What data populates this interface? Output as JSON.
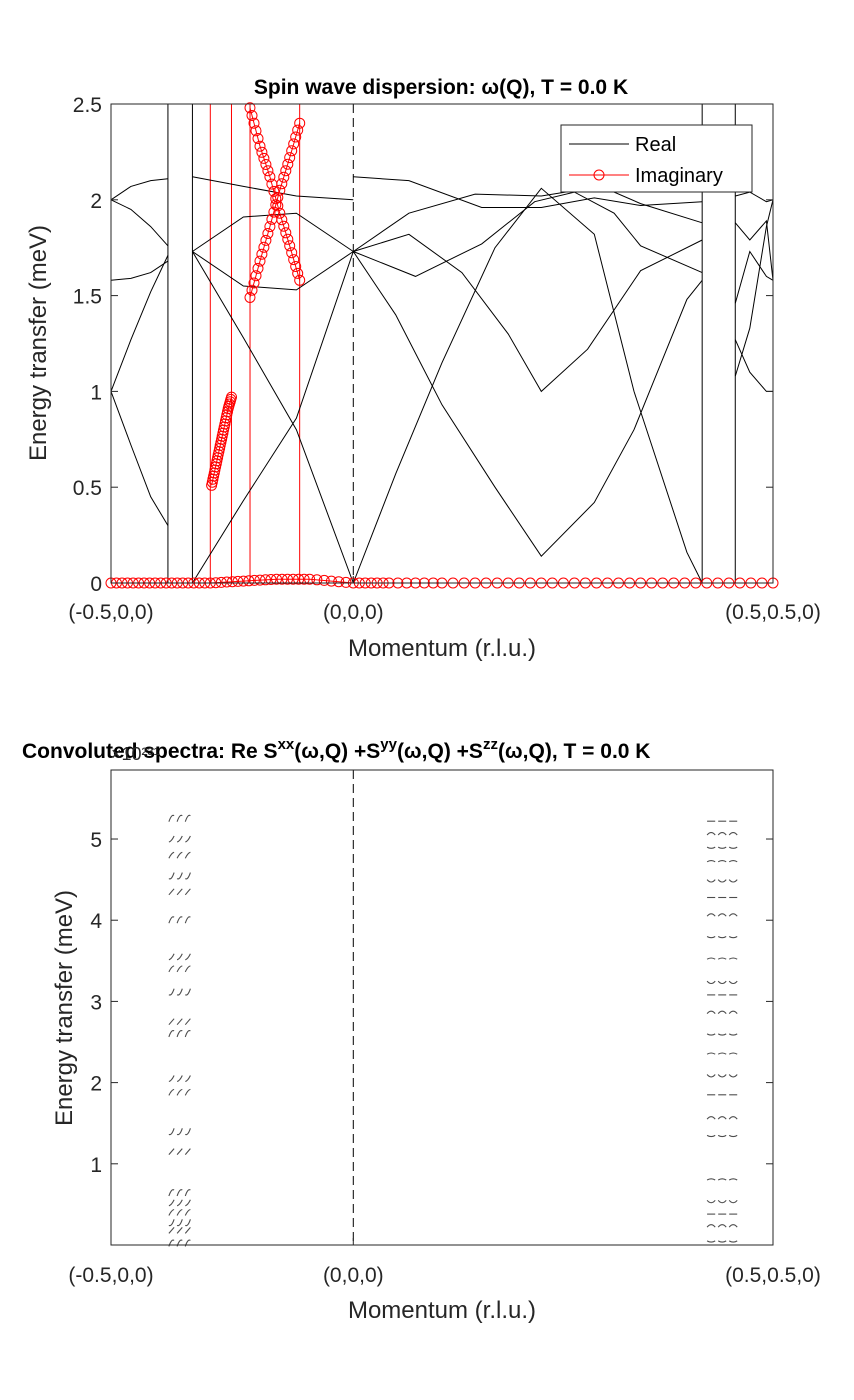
{
  "chart_data": [
    {
      "type": "line",
      "title": "Spin wave dispersion: ω(Q), T =   0.0 K",
      "xlabel": "Momentum (r.l.u.)",
      "ylabel": "Energy transfer (meV)",
      "xlim": [
        0,
        1
      ],
      "ylim": [
        0,
        2.5
      ],
      "x_tick_labels": [
        "(-0.5,0,0)",
        "(0,0,0)",
        "(0.5,0.5,0)"
      ],
      "x_tick_positions": [
        0,
        0.366,
        1
      ],
      "y_ticks": [
        0,
        0.5,
        1,
        1.5,
        2,
        2.5
      ],
      "y_tick_labels": [
        "0",
        "0.5",
        "1",
        "1.5",
        "2",
        "2.5"
      ],
      "legend": {
        "position": "top-right",
        "entries": [
          {
            "label": "Real",
            "color": "#000000",
            "marker": "none"
          },
          {
            "label": "Imaginary",
            "color": "#ff0000",
            "marker": "circle"
          }
        ]
      },
      "series": [
        {
          "name": "Real",
          "color": "#000000",
          "branches": [
            {
              "x": [
                0.0,
                0.03,
                0.06,
                0.086
              ],
              "y": [
                1.0,
                0.72,
                0.45,
                0.3
              ]
            },
            {
              "x": [
                0.0,
                0.03,
                0.06,
                0.086
              ],
              "y": [
                2.0,
                1.95,
                1.86,
                1.76
              ]
            },
            {
              "x": [
                0.0,
                0.03,
                0.06,
                0.086
              ],
              "y": [
                2.0,
                2.07,
                2.1,
                2.11
              ]
            },
            {
              "x": [
                0.0,
                0.03,
                0.06,
                0.086
              ],
              "y": [
                1.58,
                1.59,
                1.62,
                1.68
              ]
            },
            {
              "x": [
                0.0,
                0.03,
                0.06,
                0.086
              ],
              "y": [
                1.0,
                1.27,
                1.52,
                1.71
              ]
            },
            {
              "x": [
                0.123,
                0.2,
                0.28,
                0.366
              ],
              "y": [
                0.0,
                0.43,
                0.86,
                1.73
              ]
            },
            {
              "x": [
                0.123,
                0.2,
                0.28,
                0.366
              ],
              "y": [
                1.73,
                1.28,
                0.8,
                0.0
              ]
            },
            {
              "x": [
                0.123,
                0.2,
                0.28,
                0.366
              ],
              "y": [
                1.73,
                1.91,
                1.93,
                1.73
              ]
            },
            {
              "x": [
                0.123,
                0.2,
                0.28,
                0.366
              ],
              "y": [
                1.73,
                1.55,
                1.53,
                1.73
              ]
            },
            {
              "x": [
                0.123,
                0.2,
                0.28,
                0.366
              ],
              "y": [
                2.12,
                2.07,
                2.02,
                2.0
              ]
            },
            {
              "x": [
                0.366,
                0.43,
                0.5,
                0.58,
                0.65,
                0.73,
                0.79,
                0.87,
                0.893
              ],
              "y": [
                0.0,
                0.57,
                1.15,
                1.75,
                2.06,
                1.82,
                1.0,
                0.16,
                0.0
              ]
            },
            {
              "x": [
                0.366,
                0.43,
                0.5,
                0.58,
                0.65,
                0.73,
                0.79,
                0.87,
                0.893
              ],
              "y": [
                1.73,
                1.4,
                0.93,
                0.5,
                0.14,
                0.42,
                0.8,
                1.48,
                1.58
              ]
            },
            {
              "x": [
                0.366,
                0.45,
                0.56,
                0.65,
                0.73,
                0.8,
                0.893
              ],
              "y": [
                2.12,
                2.1,
                1.96,
                1.96,
                2.01,
                1.97,
                1.99
              ]
            },
            {
              "x": [
                0.366,
                0.45,
                0.53,
                0.6,
                0.65,
                0.72,
                0.8,
                0.893
              ],
              "y": [
                1.73,
                1.82,
                1.62,
                1.3,
                1.0,
                1.22,
                1.63,
                1.79
              ]
            },
            {
              "x": [
                0.366,
                0.45,
                0.55,
                0.65,
                0.74,
                0.8,
                0.893
              ],
              "y": [
                1.73,
                1.93,
                2.03,
                2.02,
                2.07,
                1.98,
                1.88
              ]
            },
            {
              "x": [
                0.366,
                0.46,
                0.56,
                0.64,
                0.7,
                0.76,
                0.8,
                0.893
              ],
              "y": [
                1.73,
                1.6,
                1.77,
                1.99,
                2.04,
                1.93,
                1.76,
                1.62
              ]
            },
            {
              "x": [
                0.943,
                0.965,
                0.99,
                1.0
              ],
              "y": [
                1.27,
                1.1,
                1.0,
                1.0
              ]
            },
            {
              "x": [
                0.943,
                0.965,
                0.99,
                1.0
              ],
              "y": [
                2.02,
                2.04,
                1.99,
                2.0
              ]
            },
            {
              "x": [
                0.943,
                0.965,
                0.99,
                1.0
              ],
              "y": [
                1.88,
                1.79,
                1.89,
                1.58
              ]
            },
            {
              "x": [
                0.943,
                0.965,
                0.99,
                1.0
              ],
              "y": [
                1.46,
                1.73,
                1.6,
                1.58
              ]
            },
            {
              "x": [
                0.943,
                0.965,
                0.99,
                1.0
              ],
              "y": [
                1.08,
                1.33,
                1.86,
                2.0
              ]
            }
          ]
        },
        {
          "name": "Imaginary",
          "color": "#ff0000",
          "branches": [
            {
              "x": [
                0.0,
                0.05,
                0.1,
                0.15,
                0.2,
                0.25,
                0.3,
                0.366,
                0.42,
                0.5,
                0.6,
                0.7,
                0.8,
                0.9,
                1.0
              ],
              "y": [
                0.0,
                0.0,
                0.0,
                0.0,
                0.01,
                0.02,
                0.02,
                0.0,
                0.0,
                0.0,
                0.0,
                0.0,
                0.0,
                0.0,
                0.0
              ]
            },
            {
              "x": [
                0.152,
                0.157,
                0.162,
                0.167,
                0.172,
                0.177,
                0.182
              ],
              "y": [
                0.51,
                0.59,
                0.67,
                0.75,
                0.83,
                0.91,
                0.97
              ]
            },
            {
              "x": [
                0.21,
                0.225,
                0.24,
                0.255,
                0.27,
                0.285
              ],
              "y": [
                2.48,
                2.28,
                2.12,
                1.93,
                1.76,
                1.58
              ]
            },
            {
              "x": [
                0.21,
                0.225,
                0.24,
                0.255,
                0.27,
                0.285
              ],
              "y": [
                1.49,
                1.68,
                1.86,
                2.05,
                2.22,
                2.4
              ]
            }
          ]
        }
      ],
      "vertical_lines": {
        "x": [
          0.086,
          0.123,
          0.893,
          0.943
        ],
        "color": "#000000"
      },
      "imaginary_spikes": {
        "x": [
          0.15,
          0.182,
          0.21,
          0.285
        ],
        "color": "#ff0000"
      },
      "dashed_lines": {
        "x": [
          0.366,
          1.0
        ]
      }
    },
    {
      "type": "heatmap",
      "title_parts": [
        "Convoluted spectra: Re S",
        "xx",
        "(ω,Q) +S",
        "yy",
        "(ω,Q) +S",
        "zz",
        "(ω,Q), T =   0.0 K"
      ],
      "exponent_label": "×10²³¹",
      "xlabel": "Momentum (r.l.u.)",
      "ylabel": "Energy transfer (meV)",
      "xlim": [
        0,
        1
      ],
      "ylim": [
        0,
        5.85
      ],
      "x_tick_labels": [
        "(-0.5,0,0)",
        "(0,0,0)",
        "(0.5,0.5,0)"
      ],
      "x_tick_positions": [
        0,
        0.366,
        1
      ],
      "y_ticks": [
        1,
        2,
        3,
        4,
        5
      ],
      "y_tick_labels": [
        "1",
        "2",
        "3",
        "4",
        "5"
      ],
      "dashed_lines": {
        "x": [
          0.366
        ]
      },
      "spectral_bands": [
        {
          "x_range": [
            0.086,
            0.123
          ],
          "energies": [
            0.02,
            0.18,
            0.28,
            0.4,
            0.52,
            0.64,
            1.15,
            1.4,
            1.88,
            2.05,
            2.6,
            2.75,
            3.12,
            3.4,
            3.55,
            4.0,
            4.35,
            4.55,
            4.8,
            5.0,
            5.25
          ]
        },
        {
          "x_range": [
            0.899,
            0.949
          ],
          "energies": [
            0.05,
            0.22,
            0.38,
            0.55,
            0.8,
            1.35,
            1.55,
            1.85,
            2.1,
            2.35,
            2.6,
            2.85,
            3.08,
            3.25,
            3.52,
            3.8,
            4.05,
            4.28,
            4.5,
            4.72,
            4.9,
            5.05,
            5.22
          ]
        }
      ]
    }
  ]
}
